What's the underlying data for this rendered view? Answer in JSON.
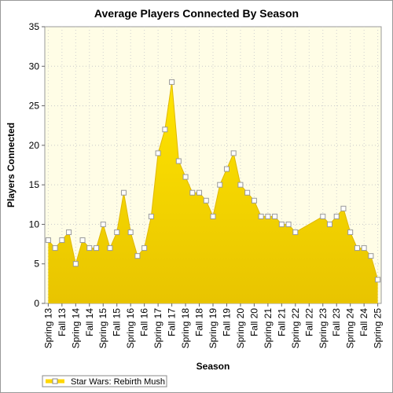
{
  "chart_data": {
    "type": "area",
    "title": "Average Players Connected By Season",
    "xlabel": "Season",
    "ylabel": "Players Connected",
    "ylim": [
      0,
      35
    ],
    "yticks": [
      0,
      5,
      10,
      15,
      20,
      25,
      30,
      35
    ],
    "grid": true,
    "legend_position": "bottom-left",
    "x_tick_labels": [
      "Spring 13",
      "Fall 13",
      "Spring 14",
      "Fall 14",
      "Spring 15",
      "Fall 15",
      "Spring 16",
      "Fall 16",
      "Spring 17",
      "Fall 17",
      "Spring 18",
      "Fall 18",
      "Spring 19",
      "Fall 19",
      "Spring 20",
      "Fall 20",
      "Spring 21",
      "Fall 21",
      "Spring 22",
      "Fall 22",
      "Spring 23",
      "Fall 23",
      "Spring 24",
      "Fall 24",
      "Spring 25"
    ],
    "series": [
      {
        "name": "Star Wars: Rebirth Mush",
        "color": "#ffd700",
        "values": [
          8,
          7,
          8,
          9,
          5,
          8,
          7,
          7,
          10,
          7,
          9,
          14,
          9,
          6,
          7,
          11,
          19,
          22,
          28,
          18,
          16,
          14,
          14,
          13,
          11,
          15,
          17,
          19,
          15,
          14,
          13,
          11,
          11,
          11,
          10,
          10,
          9,
          null,
          null,
          null,
          11,
          10,
          11,
          12,
          9,
          7,
          7,
          6,
          3
        ],
        "marker_indices": [
          0,
          1,
          2,
          3,
          4,
          5,
          6,
          7,
          8,
          9,
          10,
          11,
          12,
          13,
          14,
          15,
          16,
          17,
          18,
          19,
          20,
          21,
          22,
          23,
          24,
          25,
          26,
          27,
          28,
          29,
          30,
          31,
          32,
          33,
          34,
          35,
          36,
          40,
          41,
          42,
          43,
          44,
          45,
          46,
          47,
          48
        ]
      }
    ]
  }
}
